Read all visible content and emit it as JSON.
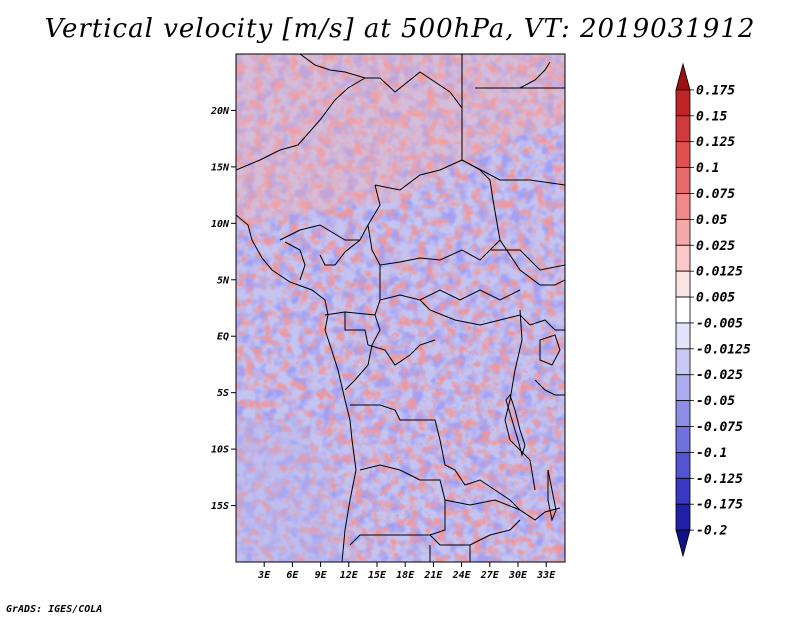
{
  "title": "Vertical velocity [m/s] at 500hPa, VT: 2019031912",
  "credit": "GrADS: IGES/COLA",
  "map": {
    "lon_range": [
      0,
      35
    ],
    "lat_range": [
      -20,
      25
    ],
    "lon_ticks": [
      {
        "value": 3,
        "label": "3E"
      },
      {
        "value": 6,
        "label": "6E"
      },
      {
        "value": 9,
        "label": "9E"
      },
      {
        "value": 12,
        "label": "12E"
      },
      {
        "value": 15,
        "label": "15E"
      },
      {
        "value": 18,
        "label": "18E"
      },
      {
        "value": 21,
        "label": "21E"
      },
      {
        "value": 24,
        "label": "24E"
      },
      {
        "value": 27,
        "label": "27E"
      },
      {
        "value": 30,
        "label": "30E"
      },
      {
        "value": 33,
        "label": "33E"
      }
    ],
    "lat_ticks": [
      {
        "value": 20,
        "label": "20N"
      },
      {
        "value": 15,
        "label": "15N"
      },
      {
        "value": 10,
        "label": "10N"
      },
      {
        "value": 5,
        "label": "5N"
      },
      {
        "value": 0,
        "label": "EQ"
      },
      {
        "value": -5,
        "label": "5S"
      },
      {
        "value": -10,
        "label": "10S"
      },
      {
        "value": -15,
        "label": "15S"
      }
    ]
  },
  "colorbar": {
    "units": "m/s",
    "levels": [
      "0.175",
      "0.15",
      "0.125",
      "0.1",
      "0.075",
      "0.05",
      "0.025",
      "0.0125",
      "0.005",
      "-0.005",
      "-0.0125",
      "-0.025",
      "-0.05",
      "-0.075",
      "-0.1",
      "-0.125",
      "-0.175",
      "-0.2"
    ],
    "colors": [
      "#a01010",
      "#c02525",
      "#d03a3a",
      "#e05050",
      "#e86a6a",
      "#f08a8a",
      "#f5aaaa",
      "#fac8c8",
      "#fde4e4",
      "#ffffff",
      "#e2e2fb",
      "#c9c9f5",
      "#acacef",
      "#8e8ee8",
      "#7070de",
      "#5454d2",
      "#3838c2",
      "#2020a8",
      "#12128a"
    ]
  }
}
